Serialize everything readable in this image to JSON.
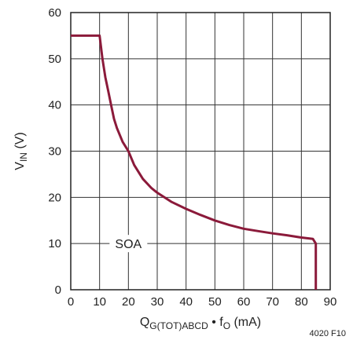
{
  "chart_data": {
    "type": "line",
    "title": "",
    "xlabel": {
      "main": "Q",
      "sub": "G(TOT)ABCD",
      "bullet": " • f",
      "sub2": "O",
      "tail": " (mA)"
    },
    "ylabel": {
      "main": "V",
      "sub": "IN",
      "tail": " (V)"
    },
    "xlim": [
      0,
      90
    ],
    "ylim": [
      0,
      60
    ],
    "xticks": [
      0,
      10,
      20,
      30,
      40,
      50,
      60,
      70,
      80,
      90
    ],
    "yticks": [
      0,
      10,
      20,
      30,
      40,
      50,
      60
    ],
    "grid": true,
    "series": [
      {
        "color": "#8b1a3a",
        "x": [
          0,
          10,
          11,
          12,
          13,
          14,
          15,
          16,
          18,
          20,
          22,
          25,
          28,
          30,
          35,
          40,
          45,
          50,
          55,
          60,
          65,
          70,
          75,
          80,
          84,
          85,
          85
        ],
        "y": [
          55,
          55,
          50,
          46,
          43,
          40,
          37,
          35,
          32,
          30,
          27,
          24,
          22,
          21,
          19,
          17.5,
          16.2,
          15,
          14,
          13.2,
          12.7,
          12.2,
          11.8,
          11.3,
          11,
          10,
          0
        ]
      }
    ],
    "annotations": [
      {
        "text": "SOA",
        "x": 20,
        "y": 10
      }
    ],
    "figure_id": "4020 F10"
  }
}
